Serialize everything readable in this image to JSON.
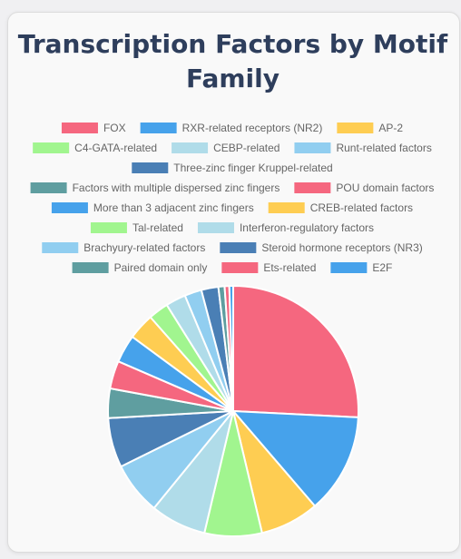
{
  "title": "Transcription Factors by Motif Family",
  "chart_data": {
    "type": "pie",
    "title": "Transcription Factors by Motif Family",
    "legend_position": "top",
    "categories": [
      "FOX",
      "RXR-related receptors (NR2)",
      "AP-2",
      "C4-GATA-related",
      "CEBP-related",
      "Runt-related factors",
      "Three-zinc finger Kruppel-related",
      "Factors with multiple dispersed zinc fingers",
      "POU domain factors",
      "More than 3 adjacent zinc fingers",
      "CREB-related factors",
      "Tal-related",
      "Interferon-regulatory factors",
      "Brachyury-related factors",
      "Steroid hormone receptors (NR3)",
      "Paired domain only",
      "Ets-related",
      "E2F"
    ],
    "values": [
      25.8,
      12.9,
      7.6,
      7.4,
      7.2,
      6.8,
      6.4,
      3.8,
      3.6,
      3.6,
      3.4,
      2.6,
      2.6,
      2.2,
      2.2,
      0.8,
      0.6,
      0.5
    ],
    "colors": [
      "#f5677f",
      "#46a2eb",
      "#fecd52",
      "#a1f58f",
      "#b0dce9",
      "#91cef0",
      "#4a7fb5",
      "#5f9ea0",
      "#f5677f",
      "#46a2eb",
      "#fecd52",
      "#a1f58f",
      "#b0dce9",
      "#91cef0",
      "#4a7fb5",
      "#5f9ea0",
      "#f5677f",
      "#46a2eb"
    ]
  }
}
